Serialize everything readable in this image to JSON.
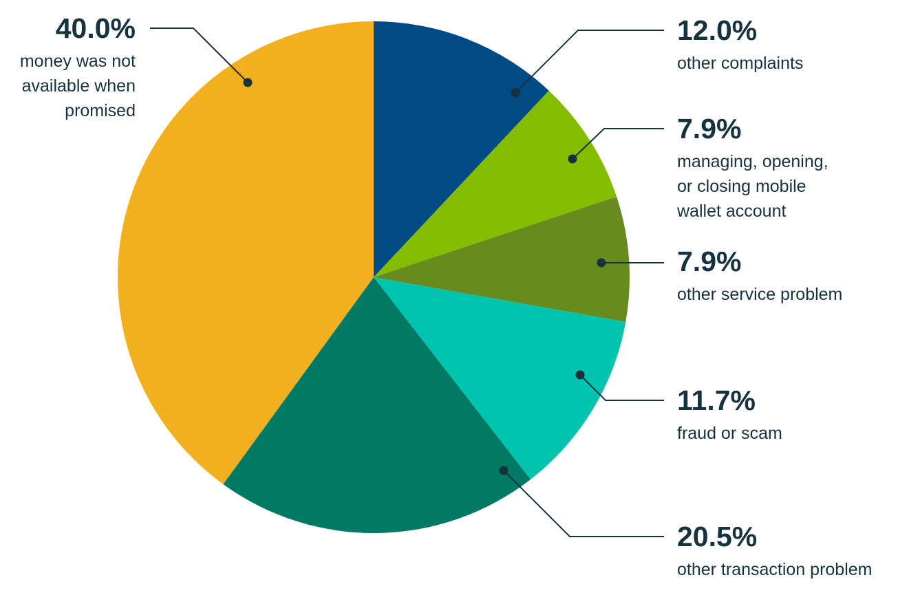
{
  "chart_data": {
    "type": "pie",
    "title": "",
    "unit": "%",
    "start": "12 o'clock",
    "direction": "clockwise",
    "legend": "none",
    "slices": [
      {
        "label": "other complaints",
        "value": 12.0,
        "display": "12.0%",
        "color": "#004a86",
        "description_lines": [
          "other complaints"
        ]
      },
      {
        "label": "managing, opening, or closing mobile wallet account",
        "value": 7.9,
        "display": "7.9%",
        "color": "#84bd00",
        "description_lines": [
          "managing, opening,",
          "or closing mobile",
          "wallet account"
        ]
      },
      {
        "label": "other service problem",
        "value": 7.9,
        "display": "7.9%",
        "color": "#678b1e",
        "description_lines": [
          "other service problem"
        ]
      },
      {
        "label": "fraud or scam",
        "value": 11.7,
        "display": "11.7%",
        "color": "#00c4ae",
        "description_lines": [
          "fraud or scam"
        ]
      },
      {
        "label": "other transaction problem",
        "value": 20.5,
        "display": "20.5%",
        "color": "#007965",
        "description_lines": [
          "other transaction problem"
        ]
      },
      {
        "label": "money was not available when promised",
        "value": 40.0,
        "display": "40.0%",
        "color": "#f3b01e",
        "description_lines": [
          "money was not",
          "available when",
          "promised"
        ]
      }
    ]
  }
}
